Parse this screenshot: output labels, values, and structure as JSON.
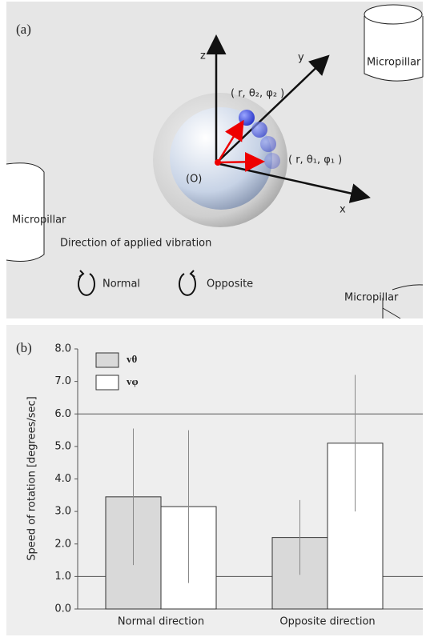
{
  "diagram": {
    "panel_label": "(a)",
    "axes": {
      "z": "z",
      "y": "y",
      "x": "x"
    },
    "positions": {
      "p2": "( r, θ₂, φ₂ )",
      "p1": "( r, θ₁, φ₁ )",
      "origin": "(O)"
    },
    "micropillars": [
      "Micropillar",
      "Micropillar",
      "Micropillar"
    ],
    "vibration": {
      "title": "Direction of applied vibration",
      "normal": "Normal",
      "opposite": "Opposite"
    }
  },
  "chart_data": {
    "type": "bar",
    "panel_label": "(b)",
    "y_label": "Speed of rotation [degrees/sec]",
    "categories": [
      "Normal direction",
      "Opposite direction"
    ],
    "series": [
      {
        "name": "vθ",
        "color": "#d9d9d9",
        "values": [
          3.45,
          2.2
        ],
        "errors": [
          2.1,
          1.15
        ]
      },
      {
        "name": "vφ",
        "color": "#ffffff",
        "values": [
          3.15,
          5.1
        ],
        "errors": [
          2.35,
          2.1
        ]
      }
    ],
    "ylim": [
      0,
      8
    ],
    "yticks": [
      {
        "value": 0,
        "label": "0.0"
      },
      {
        "value": 1,
        "label": "1.0"
      },
      {
        "value": 2,
        "label": "2.0"
      },
      {
        "value": 3,
        "label": "3.0"
      },
      {
        "value": 4,
        "label": "4.0"
      },
      {
        "value": 5,
        "label": "5.0"
      },
      {
        "value": 6,
        "label": "6.0"
      },
      {
        "value": 7,
        "label": "7.0"
      },
      {
        "value": 8,
        "label": "8.0"
      }
    ],
    "hlines": [
      1,
      6
    ],
    "legend": "upper left"
  }
}
